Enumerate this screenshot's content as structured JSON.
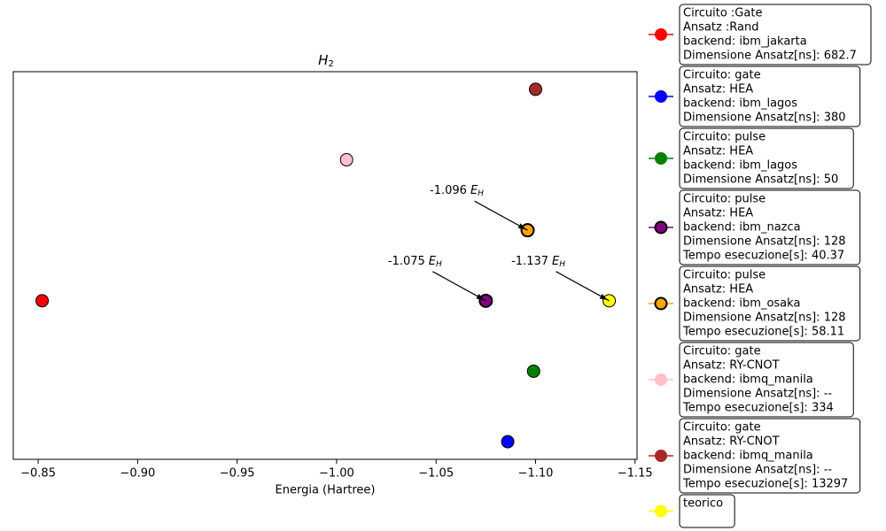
{
  "chart_data": {
    "type": "scatter",
    "title": "H",
    "title_sub": "2",
    "x_label": "Energia (Hartree)",
    "xlim": [
      -0.8375,
      -1.151
    ],
    "ylim": [
      -0.25,
      5.25
    ],
    "xticks": [
      {
        "value": -0.85,
        "label": "−0.85"
      },
      {
        "value": -0.9,
        "label": "−0.90"
      },
      {
        "value": -0.95,
        "label": "−0.95"
      },
      {
        "value": -1.0,
        "label": "−1.00"
      },
      {
        "value": -1.05,
        "label": "−1.05"
      },
      {
        "value": -1.1,
        "label": "−1.10"
      },
      {
        "value": -1.15,
        "label": "−1.15"
      }
    ],
    "series": [
      {
        "name": [
          "Circuito :Gate",
          "Ansatz :Rand",
          "backend: ibm_jakarta",
          "Dimensione Ansatz[ns]: 682.7"
        ],
        "color": "red",
        "edge_width": 1,
        "x": [
          -0.852
        ],
        "values": [
          2
        ]
      },
      {
        "name": [
          "Circuito: gate",
          "Ansatz: HEA",
          "backend: ibm_lagos",
          "Dimensione Ansatz[ns]: 380"
        ],
        "color": "blue",
        "edge_width": 1,
        "x": [
          -1.086
        ],
        "values": [
          0
        ]
      },
      {
        "name": [
          "Circuito: pulse",
          "Ansatz: HEA",
          "backend: ibm_lagos",
          "Dimensione Ansatz[ns]: 50"
        ],
        "color": "green",
        "edge_width": 1,
        "x": [
          -1.099
        ],
        "values": [
          1
        ]
      },
      {
        "name": [
          "Circuito: pulse",
          "Ansatz: HEA",
          "backend: ibm_nazca",
          "Dimensione Ansatz[ns]: 128",
          "Tempo esecuzione[s]: 40.37"
        ],
        "color": "purple",
        "edge_width": 2,
        "x": [
          -1.075
        ],
        "values": [
          2
        ]
      },
      {
        "name": [
          "Circuito: pulse",
          "Ansatz: HEA",
          "backend: ibm_osaka",
          "Dimensione Ansatz[ns]: 128",
          "Tempo esecuzione[s]: 58.11"
        ],
        "color": "orange",
        "edge_width": 2,
        "x": [
          -1.096
        ],
        "values": [
          3
        ]
      },
      {
        "name": [
          "Circuito: gate",
          "Ansatz: RY-CNOT",
          "backend: ibmq_manila",
          "Dimensione Ansatz[ns]: --",
          "Tempo esecuzione[s]: 334"
        ],
        "color": "pink",
        "edge_width": 1,
        "x": [
          -1.005
        ],
        "values": [
          4
        ]
      },
      {
        "name": [
          "Circuito: gate",
          "Ansatz: RY-CNOT",
          "backend: ibmq_manila",
          "Dimensione Ansatz[ns]: --",
          "Tempo esecuzione[s]: 13297"
        ],
        "color": "brown",
        "edge_width": 1,
        "x": [
          -1.1
        ],
        "values": [
          5
        ]
      },
      {
        "name": [
          "teorico"
        ],
        "color": "yellow",
        "edge_width": 1,
        "x": [
          -1.137
        ],
        "values": [
          2
        ]
      }
    ],
    "annotations": [
      {
        "text": "-1.096",
        "x": -1.096,
        "y": 3
      },
      {
        "text": "-1.075",
        "x": -1.075,
        "y": 2
      },
      {
        "text": "-1.137",
        "x": -1.137,
        "y": 2
      }
    ],
    "annotation_unit": "E",
    "annotation_unit_sub": "H"
  }
}
